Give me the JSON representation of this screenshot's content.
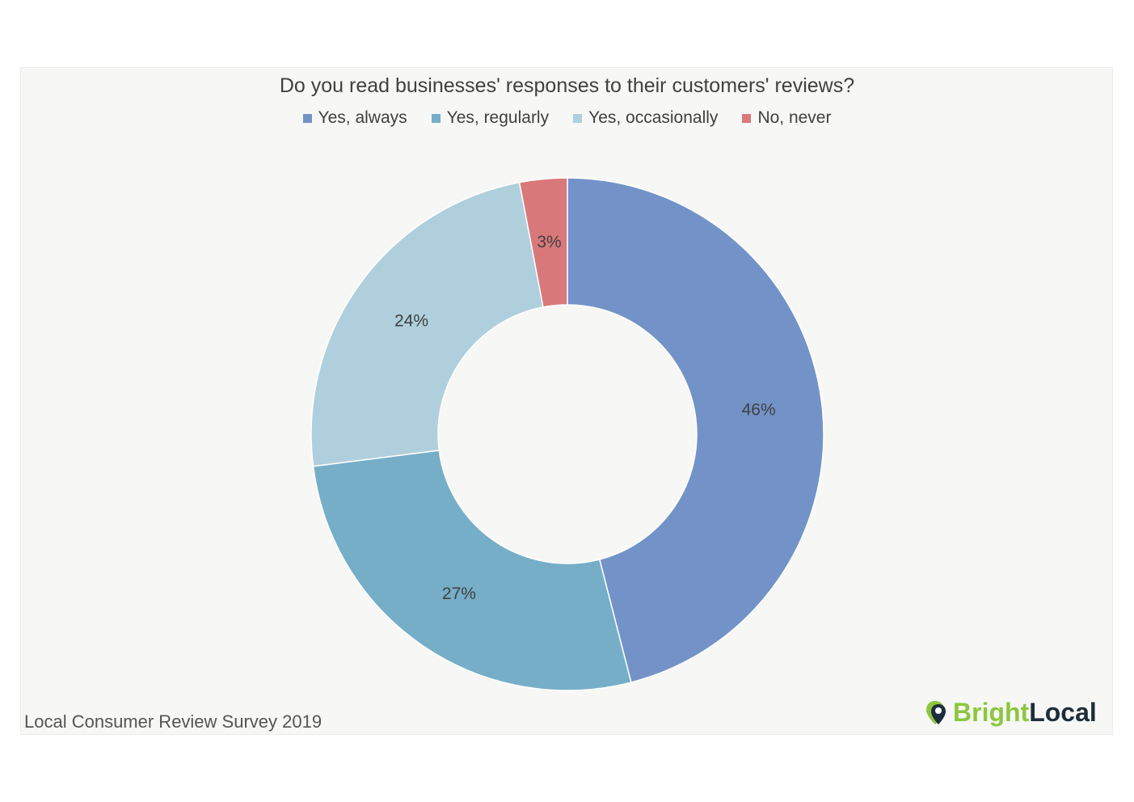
{
  "chart_data": {
    "type": "pie",
    "variant": "donut",
    "title": "Do you read businesses' responses to their customers' reviews?",
    "categories": [
      "Yes, always",
      "Yes, regularly",
      "Yes, occasionally",
      "No, never"
    ],
    "values": [
      46,
      27,
      24,
      3
    ],
    "labels": [
      "46%",
      "27%",
      "24%",
      "3%"
    ],
    "colors": [
      "#7393c8",
      "#76aec8",
      "#afcfdd",
      "#d9787a"
    ],
    "legend_position": "top",
    "start_angle_deg": 0,
    "direction": "clockwise"
  },
  "footer": {
    "source": "Local Consumer Review Survey 2019"
  },
  "brand": {
    "part1": "Bright",
    "part2": "Local"
  }
}
